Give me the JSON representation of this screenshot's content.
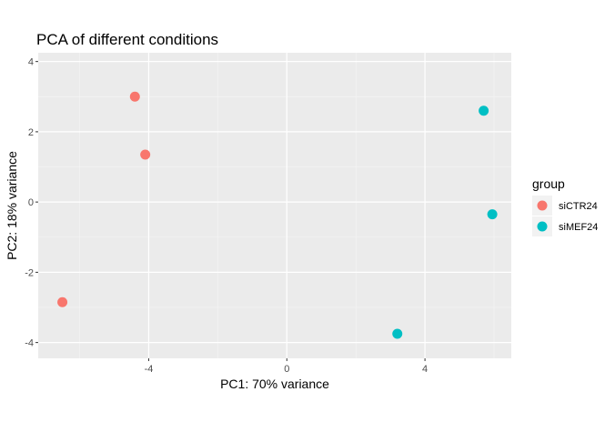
{
  "chart_data": {
    "type": "scatter",
    "title": "PCA of different conditions",
    "xlabel": "PC1: 70% variance",
    "ylabel": "PC2: 18% variance",
    "xlim": [
      -7.2,
      6.5
    ],
    "ylim": [
      -4.45,
      4.25
    ],
    "xticks": [
      -4,
      0,
      4
    ],
    "yticks": [
      -4,
      -2,
      0,
      2,
      4
    ],
    "x_tick_labels": [
      "-4",
      "0",
      "4"
    ],
    "y_tick_labels": [
      "-4",
      "-2",
      "0",
      "2",
      "4"
    ],
    "grid": true,
    "legend": {
      "title": "group",
      "position": "right"
    },
    "series": [
      {
        "name": "siCTR24",
        "color": "#F8766D",
        "points": [
          [
            -4.4,
            3.0
          ],
          [
            -4.1,
            1.35
          ],
          [
            -6.5,
            -2.85
          ]
        ]
      },
      {
        "name": "siMEF24",
        "color": "#00BFC4",
        "points": [
          [
            5.7,
            2.6
          ],
          [
            5.95,
            -0.35
          ],
          [
            3.2,
            -3.75
          ]
        ]
      }
    ]
  }
}
